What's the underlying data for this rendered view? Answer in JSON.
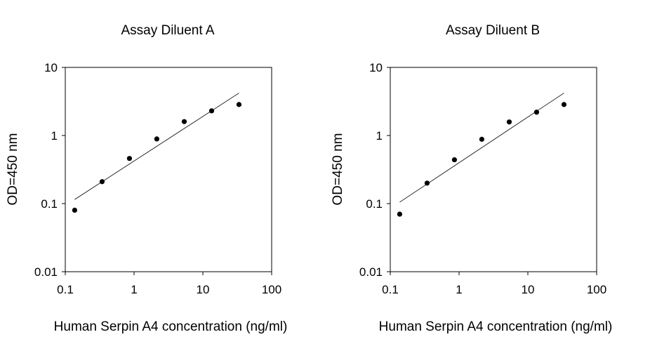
{
  "chart_data": [
    {
      "type": "scatter",
      "title": "Assay Diluent A",
      "xlabel": "Human Serpin A4 concentration (ng/ml)",
      "ylabel": "OD=450 nm",
      "xscale": "log",
      "yscale": "log",
      "xlim": [
        0.1,
        100
      ],
      "ylim": [
        0.01,
        10
      ],
      "xticks": [
        "0.1",
        "1",
        "10",
        "100"
      ],
      "yticks": [
        "0.01",
        "0.1",
        "1",
        "10"
      ],
      "grid": false,
      "legend": "none",
      "series": [
        {
          "x": [
            0.137,
            0.343,
            0.857,
            2.14,
            5.36,
            13.4,
            33.5
          ],
          "y": [
            0.08,
            0.21,
            0.46,
            0.89,
            1.6,
            2.3,
            2.85
          ]
        }
      ],
      "trendline": {
        "x": [
          0.137,
          33.5
        ],
        "y": [
          0.115,
          4.2
        ]
      }
    },
    {
      "type": "scatter",
      "title": "Assay Diluent B",
      "xlabel": "Human Serpin A4 concentration (ng/ml)",
      "ylabel": "OD=450 nm",
      "xscale": "log",
      "yscale": "log",
      "xlim": [
        0.1,
        100
      ],
      "ylim": [
        0.01,
        10
      ],
      "xticks": [
        "0.1",
        "1",
        "10",
        "100"
      ],
      "yticks": [
        "0.01",
        "0.1",
        "1",
        "10"
      ],
      "grid": false,
      "legend": "none",
      "series": [
        {
          "x": [
            0.137,
            0.343,
            0.857,
            2.14,
            5.36,
            13.4,
            33.5
          ],
          "y": [
            0.07,
            0.2,
            0.44,
            0.88,
            1.58,
            2.2,
            2.85
          ]
        }
      ],
      "trendline": {
        "x": [
          0.137,
          33.5
        ],
        "y": [
          0.105,
          4.2
        ]
      }
    }
  ]
}
